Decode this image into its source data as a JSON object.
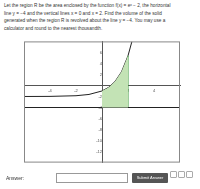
{
  "question": {
    "lines": [
      "Let the region R be the area enclosed by the function f(x) = eˣ − 2, the horizontal",
      "line y = −4 and the vertical lines x = 0 and x = 2. Find the volume of the solid",
      "generated when the region R is revolved about the line y = −4. You may use a",
      "calculator and round to the nearest thousandth."
    ]
  },
  "chart_data": {
    "type": "scatter",
    "xlim": [
      -6,
      6
    ],
    "xticks": [
      -4,
      -2,
      2,
      4
    ],
    "ylim": [
      -14,
      8
    ],
    "yticks": [
      -12,
      -10,
      -8,
      -6,
      -4,
      -2,
      2,
      4,
      6
    ],
    "grid": false,
    "series": [
      {
        "type": "area",
        "color": "#c3e3b5",
        "x": [
          0,
          0.5,
          1,
          1.5,
          2,
          2,
          0
        ],
        "values": [
          -1,
          -0.35,
          0.72,
          2.48,
          5.39,
          -4,
          -4
        ]
      },
      {
        "type": "line",
        "color": "#222222",
        "x": [
          -6,
          6
        ],
        "values": [
          -4,
          -4
        ]
      },
      {
        "type": "line",
        "color": "#3a9a3a",
        "x": [
          2,
          2
        ],
        "values": [
          -4,
          5.39
        ]
      },
      {
        "type": "line",
        "color": "#222222",
        "x": [
          -6,
          -4,
          -2,
          -1,
          0,
          0.5,
          1,
          1.5,
          2,
          2.3
        ],
        "values": [
          -2,
          -1.98,
          -1.86,
          -1.63,
          -1,
          -0.35,
          0.72,
          2.48,
          5.39,
          7.97
        ]
      }
    ]
  },
  "answer": {
    "label": "Answer:",
    "button": "Submit Answer"
  }
}
